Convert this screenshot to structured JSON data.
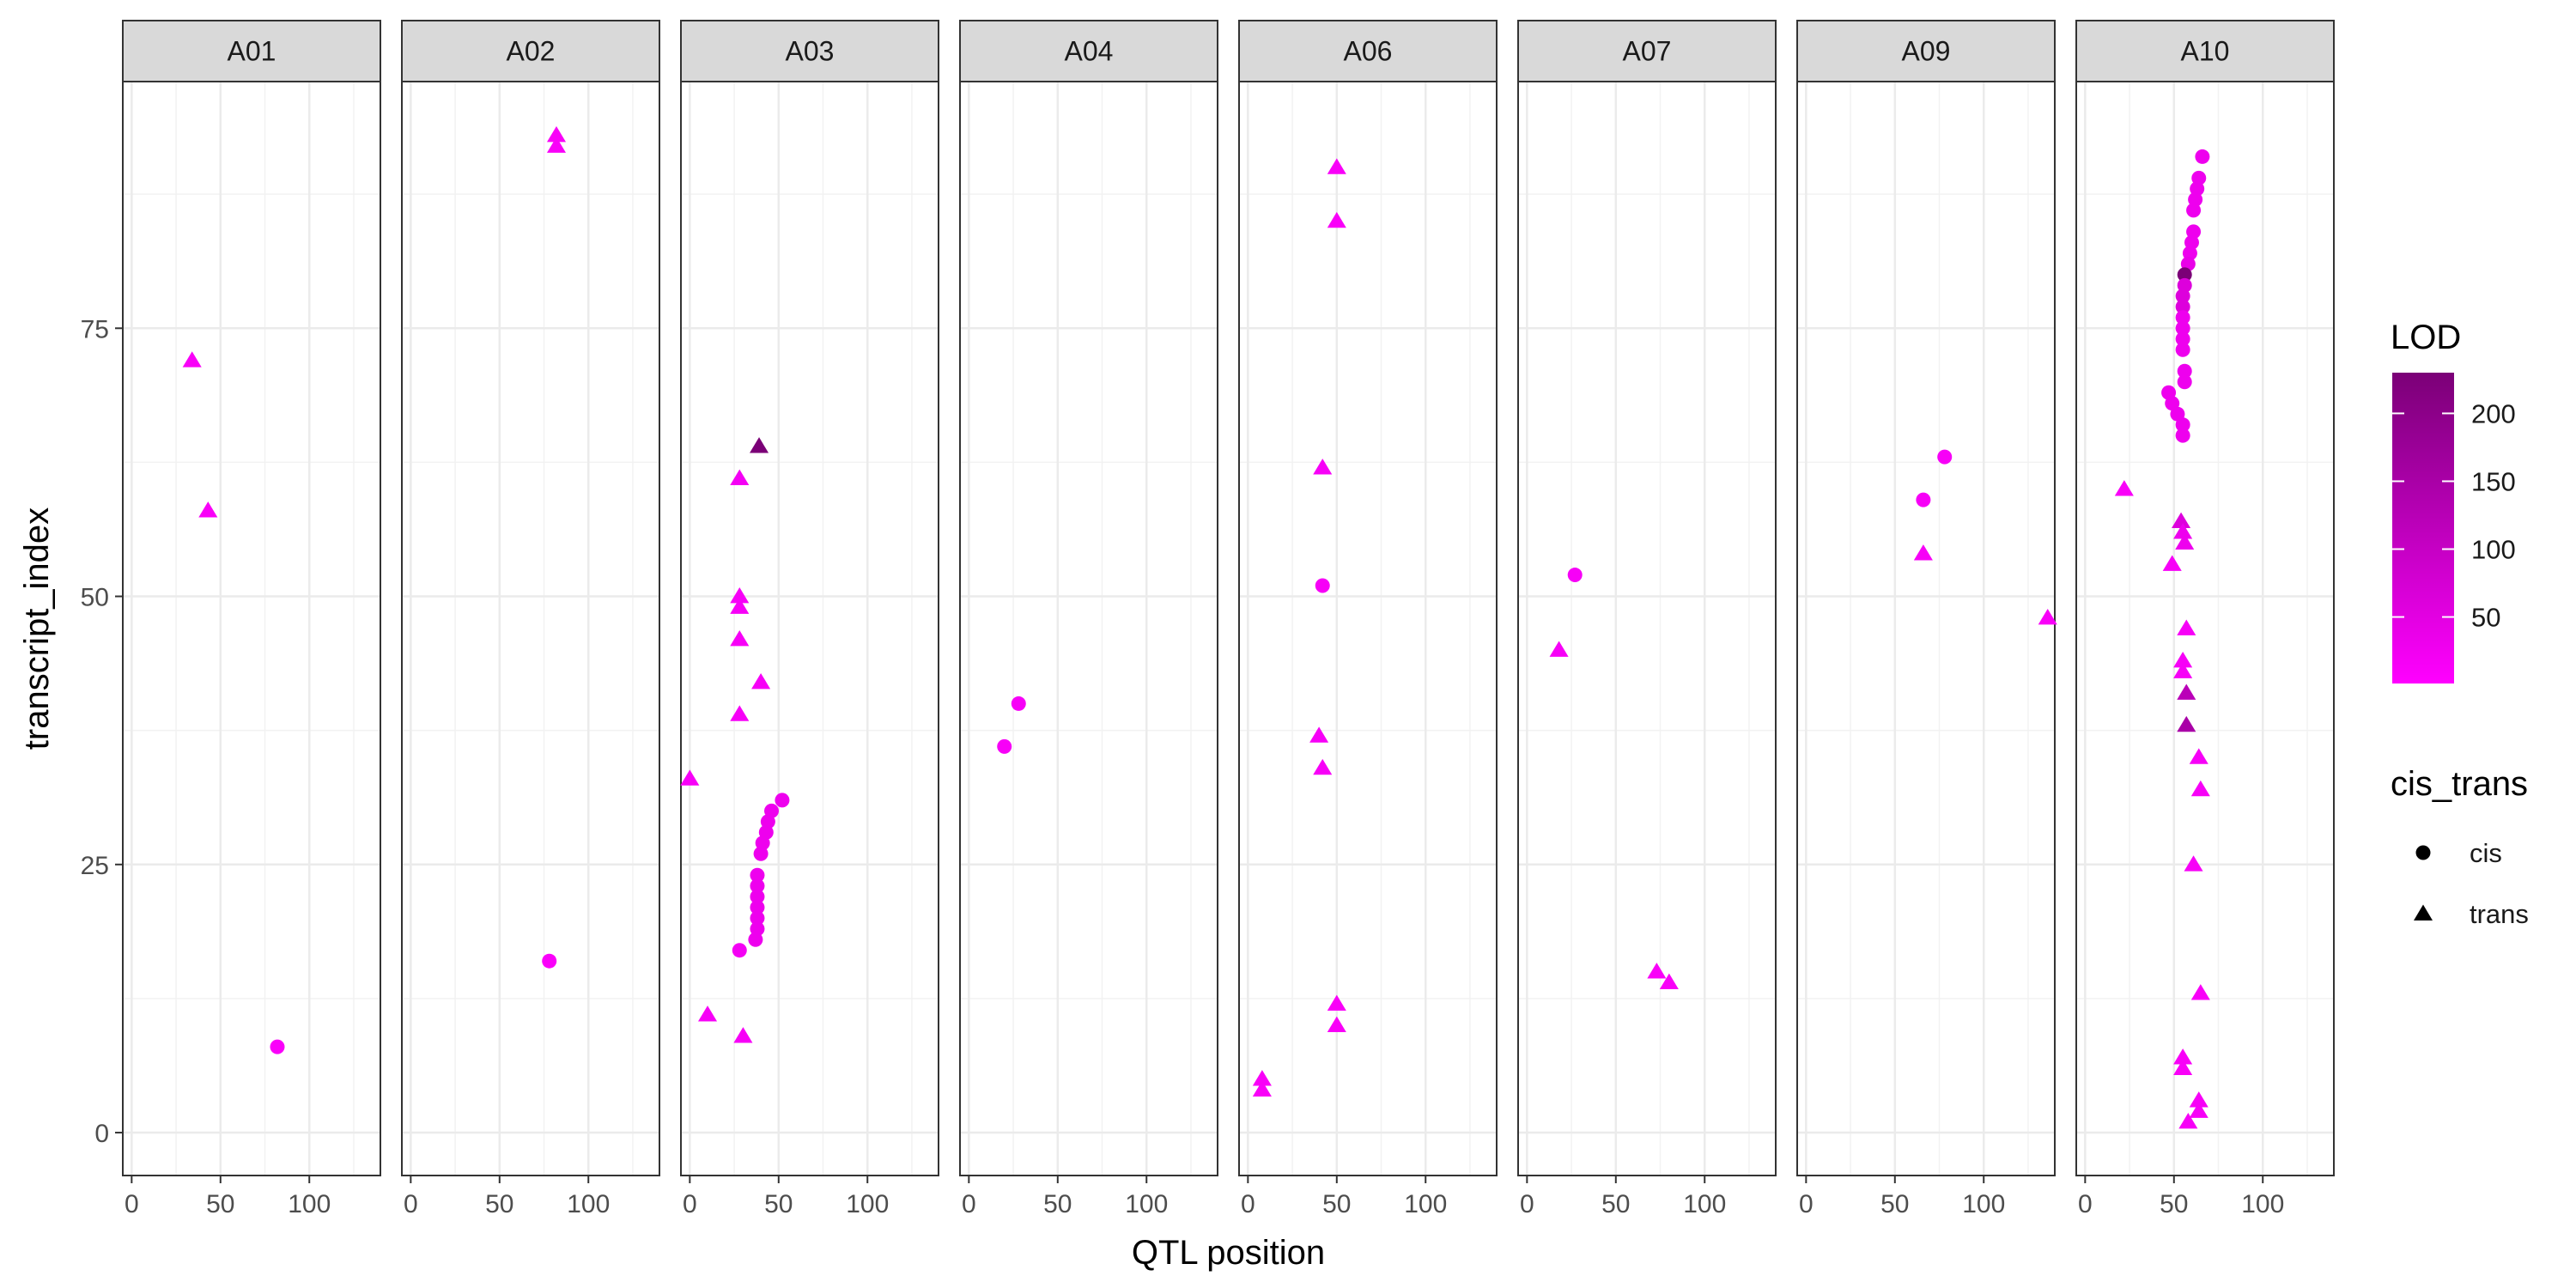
{
  "chart_data": {
    "type": "scatter",
    "facet_by": "chromosome",
    "panels": [
      "A01",
      "A02",
      "A03",
      "A04",
      "A06",
      "A07",
      "A09",
      "A10"
    ],
    "xlabel": "QTL position",
    "ylabel": "transcript_index",
    "xlim": [
      -5,
      140
    ],
    "ylim": [
      -4,
      98
    ],
    "x_ticks": [
      0,
      50,
      100
    ],
    "y_ticks": [
      0,
      25,
      50,
      75
    ],
    "grid": true,
    "color_legend": {
      "title": "LOD",
      "ticks": [
        50,
        100,
        150,
        200
      ],
      "range": [
        1,
        230
      ],
      "low_color": "#ff00ff",
      "high_color": "#7b0077"
    },
    "shape_legend": {
      "title": "cis_trans",
      "items": [
        {
          "label": "cis",
          "shape": "circle"
        },
        {
          "label": "trans",
          "shape": "triangle"
        }
      ]
    },
    "points": [
      {
        "panel": "A01",
        "x": 34,
        "y": 72,
        "type": "trans",
        "lod": 12
      },
      {
        "panel": "A01",
        "x": 43,
        "y": 58,
        "type": "trans",
        "lod": 12
      },
      {
        "panel": "A01",
        "x": 82,
        "y": 8,
        "type": "cis",
        "lod": 10
      },
      {
        "panel": "A02",
        "x": 82,
        "y": 93,
        "type": "trans",
        "lod": 12
      },
      {
        "panel": "A02",
        "x": 82,
        "y": 92,
        "type": "trans",
        "lod": 12
      },
      {
        "panel": "A02",
        "x": 78,
        "y": 16,
        "type": "cis",
        "lod": 10
      },
      {
        "panel": "A03",
        "x": 39,
        "y": 64,
        "type": "trans",
        "lod": 230
      },
      {
        "panel": "A03",
        "x": 28,
        "y": 61,
        "type": "trans",
        "lod": 20
      },
      {
        "panel": "A03",
        "x": 28,
        "y": 50,
        "type": "trans",
        "lod": 15
      },
      {
        "panel": "A03",
        "x": 28,
        "y": 49,
        "type": "trans",
        "lod": 15
      },
      {
        "panel": "A03",
        "x": 28,
        "y": 46,
        "type": "trans",
        "lod": 15
      },
      {
        "panel": "A03",
        "x": 40,
        "y": 42,
        "type": "trans",
        "lod": 15
      },
      {
        "panel": "A03",
        "x": 28,
        "y": 39,
        "type": "trans",
        "lod": 15
      },
      {
        "panel": "A03",
        "x": 0,
        "y": 33,
        "type": "trans",
        "lod": 15
      },
      {
        "panel": "A03",
        "x": 52,
        "y": 31,
        "type": "cis",
        "lod": 30
      },
      {
        "panel": "A03",
        "x": 46,
        "y": 30,
        "type": "cis",
        "lod": 30
      },
      {
        "panel": "A03",
        "x": 44,
        "y": 29,
        "type": "cis",
        "lod": 30
      },
      {
        "panel": "A03",
        "x": 43,
        "y": 28,
        "type": "cis",
        "lod": 30
      },
      {
        "panel": "A03",
        "x": 41,
        "y": 27,
        "type": "cis",
        "lod": 30
      },
      {
        "panel": "A03",
        "x": 40,
        "y": 26,
        "type": "cis",
        "lod": 30
      },
      {
        "panel": "A03",
        "x": 38,
        "y": 24,
        "type": "cis",
        "lod": 30
      },
      {
        "panel": "A03",
        "x": 38,
        "y": 23,
        "type": "cis",
        "lod": 30
      },
      {
        "panel": "A03",
        "x": 38,
        "y": 22,
        "type": "cis",
        "lod": 30
      },
      {
        "panel": "A03",
        "x": 38,
        "y": 21,
        "type": "cis",
        "lod": 30
      },
      {
        "panel": "A03",
        "x": 38,
        "y": 20,
        "type": "cis",
        "lod": 30
      },
      {
        "panel": "A03",
        "x": 38,
        "y": 19,
        "type": "cis",
        "lod": 30
      },
      {
        "panel": "A03",
        "x": 37,
        "y": 18,
        "type": "cis",
        "lod": 30
      },
      {
        "panel": "A03",
        "x": 28,
        "y": 17,
        "type": "cis",
        "lod": 20
      },
      {
        "panel": "A03",
        "x": 10,
        "y": 11,
        "type": "trans",
        "lod": 15
      },
      {
        "panel": "A03",
        "x": 30,
        "y": 9,
        "type": "trans",
        "lod": 15
      },
      {
        "panel": "A04",
        "x": 28,
        "y": 40,
        "type": "cis",
        "lod": 15
      },
      {
        "panel": "A04",
        "x": 20,
        "y": 36,
        "type": "cis",
        "lod": 15
      },
      {
        "panel": "A06",
        "x": 50,
        "y": 90,
        "type": "trans",
        "lod": 12
      },
      {
        "panel": "A06",
        "x": 50,
        "y": 85,
        "type": "trans",
        "lod": 12
      },
      {
        "panel": "A06",
        "x": 42,
        "y": 62,
        "type": "trans",
        "lod": 15
      },
      {
        "panel": "A06",
        "x": 42,
        "y": 51,
        "type": "cis",
        "lod": 15
      },
      {
        "panel": "A06",
        "x": 40,
        "y": 37,
        "type": "trans",
        "lod": 15
      },
      {
        "panel": "A06",
        "x": 42,
        "y": 34,
        "type": "trans",
        "lod": 15
      },
      {
        "panel": "A06",
        "x": 50,
        "y": 12,
        "type": "trans",
        "lod": 12
      },
      {
        "panel": "A06",
        "x": 50,
        "y": 10,
        "type": "trans",
        "lod": 12
      },
      {
        "panel": "A06",
        "x": 8,
        "y": 5,
        "type": "trans",
        "lod": 12
      },
      {
        "panel": "A06",
        "x": 8,
        "y": 4,
        "type": "trans",
        "lod": 12
      },
      {
        "panel": "A07",
        "x": 27,
        "y": 52,
        "type": "cis",
        "lod": 15
      },
      {
        "panel": "A07",
        "x": 18,
        "y": 45,
        "type": "trans",
        "lod": 15
      },
      {
        "panel": "A07",
        "x": 73,
        "y": 15,
        "type": "trans",
        "lod": 12
      },
      {
        "panel": "A07",
        "x": 80,
        "y": 14,
        "type": "trans",
        "lod": 12
      },
      {
        "panel": "A09",
        "x": 78,
        "y": 63,
        "type": "cis",
        "lod": 15
      },
      {
        "panel": "A09",
        "x": 66,
        "y": 59,
        "type": "cis",
        "lod": 15
      },
      {
        "panel": "A09",
        "x": 66,
        "y": 54,
        "type": "trans",
        "lod": 15
      },
      {
        "panel": "A09",
        "x": 136,
        "y": 48,
        "type": "trans",
        "lod": 12
      },
      {
        "panel": "A10",
        "x": 66,
        "y": 91,
        "type": "cis",
        "lod": 30
      },
      {
        "panel": "A10",
        "x": 64,
        "y": 89,
        "type": "cis",
        "lod": 30
      },
      {
        "panel": "A10",
        "x": 63,
        "y": 88,
        "type": "cis",
        "lod": 30
      },
      {
        "panel": "A10",
        "x": 62,
        "y": 87,
        "type": "cis",
        "lod": 30
      },
      {
        "panel": "A10",
        "x": 61,
        "y": 86,
        "type": "cis",
        "lod": 30
      },
      {
        "panel": "A10",
        "x": 61,
        "y": 84,
        "type": "cis",
        "lod": 30
      },
      {
        "panel": "A10",
        "x": 60,
        "y": 83,
        "type": "cis",
        "lod": 30
      },
      {
        "panel": "A10",
        "x": 59,
        "y": 82,
        "type": "cis",
        "lod": 30
      },
      {
        "panel": "A10",
        "x": 58,
        "y": 81,
        "type": "cis",
        "lod": 40
      },
      {
        "panel": "A10",
        "x": 56,
        "y": 80,
        "type": "cis",
        "lod": 230
      },
      {
        "panel": "A10",
        "x": 56,
        "y": 79,
        "type": "cis",
        "lod": 60
      },
      {
        "panel": "A10",
        "x": 55,
        "y": 78,
        "type": "cis",
        "lod": 60
      },
      {
        "panel": "A10",
        "x": 55,
        "y": 77,
        "type": "cis",
        "lod": 60
      },
      {
        "panel": "A10",
        "x": 55,
        "y": 76,
        "type": "cis",
        "lod": 30
      },
      {
        "panel": "A10",
        "x": 55,
        "y": 75,
        "type": "cis",
        "lod": 30
      },
      {
        "panel": "A10",
        "x": 55,
        "y": 74,
        "type": "cis",
        "lod": 30
      },
      {
        "panel": "A10",
        "x": 55,
        "y": 73,
        "type": "cis",
        "lod": 30
      },
      {
        "panel": "A10",
        "x": 56,
        "y": 71,
        "type": "cis",
        "lod": 30
      },
      {
        "panel": "A10",
        "x": 56,
        "y": 70,
        "type": "cis",
        "lod": 30
      },
      {
        "panel": "A10",
        "x": 47,
        "y": 69,
        "type": "cis",
        "lod": 30
      },
      {
        "panel": "A10",
        "x": 49,
        "y": 68,
        "type": "cis",
        "lod": 30
      },
      {
        "panel": "A10",
        "x": 52,
        "y": 67,
        "type": "cis",
        "lod": 30
      },
      {
        "panel": "A10",
        "x": 55,
        "y": 66,
        "type": "cis",
        "lod": 30
      },
      {
        "panel": "A10",
        "x": 55,
        "y": 65,
        "type": "cis",
        "lod": 30
      },
      {
        "panel": "A10",
        "x": 22,
        "y": 60,
        "type": "trans",
        "lod": 12
      },
      {
        "panel": "A10",
        "x": 54,
        "y": 57,
        "type": "trans",
        "lod": 60
      },
      {
        "panel": "A10",
        "x": 55,
        "y": 56,
        "type": "trans",
        "lod": 30
      },
      {
        "panel": "A10",
        "x": 56,
        "y": 55,
        "type": "trans",
        "lod": 30
      },
      {
        "panel": "A10",
        "x": 49,
        "y": 53,
        "type": "trans",
        "lod": 15
      },
      {
        "panel": "A10",
        "x": 57,
        "y": 47,
        "type": "trans",
        "lod": 15
      },
      {
        "panel": "A10",
        "x": 55,
        "y": 44,
        "type": "trans",
        "lod": 15
      },
      {
        "panel": "A10",
        "x": 55,
        "y": 43,
        "type": "trans",
        "lod": 15
      },
      {
        "panel": "A10",
        "x": 57,
        "y": 41,
        "type": "trans",
        "lod": 120
      },
      {
        "panel": "A10",
        "x": 57,
        "y": 38,
        "type": "trans",
        "lod": 150
      },
      {
        "panel": "A10",
        "x": 64,
        "y": 35,
        "type": "trans",
        "lod": 15
      },
      {
        "panel": "A10",
        "x": 65,
        "y": 32,
        "type": "trans",
        "lod": 15
      },
      {
        "panel": "A10",
        "x": 61,
        "y": 25,
        "type": "trans",
        "lod": 15
      },
      {
        "panel": "A10",
        "x": 65,
        "y": 13,
        "type": "trans",
        "lod": 12
      },
      {
        "panel": "A10",
        "x": 55,
        "y": 7,
        "type": "trans",
        "lod": 12
      },
      {
        "panel": "A10",
        "x": 55,
        "y": 6,
        "type": "trans",
        "lod": 12
      },
      {
        "panel": "A10",
        "x": 64,
        "y": 3,
        "type": "trans",
        "lod": 15
      },
      {
        "panel": "A10",
        "x": 64,
        "y": 2,
        "type": "trans",
        "lod": 15
      },
      {
        "panel": "A10",
        "x": 58,
        "y": 1,
        "type": "trans",
        "lod": 15
      }
    ]
  }
}
